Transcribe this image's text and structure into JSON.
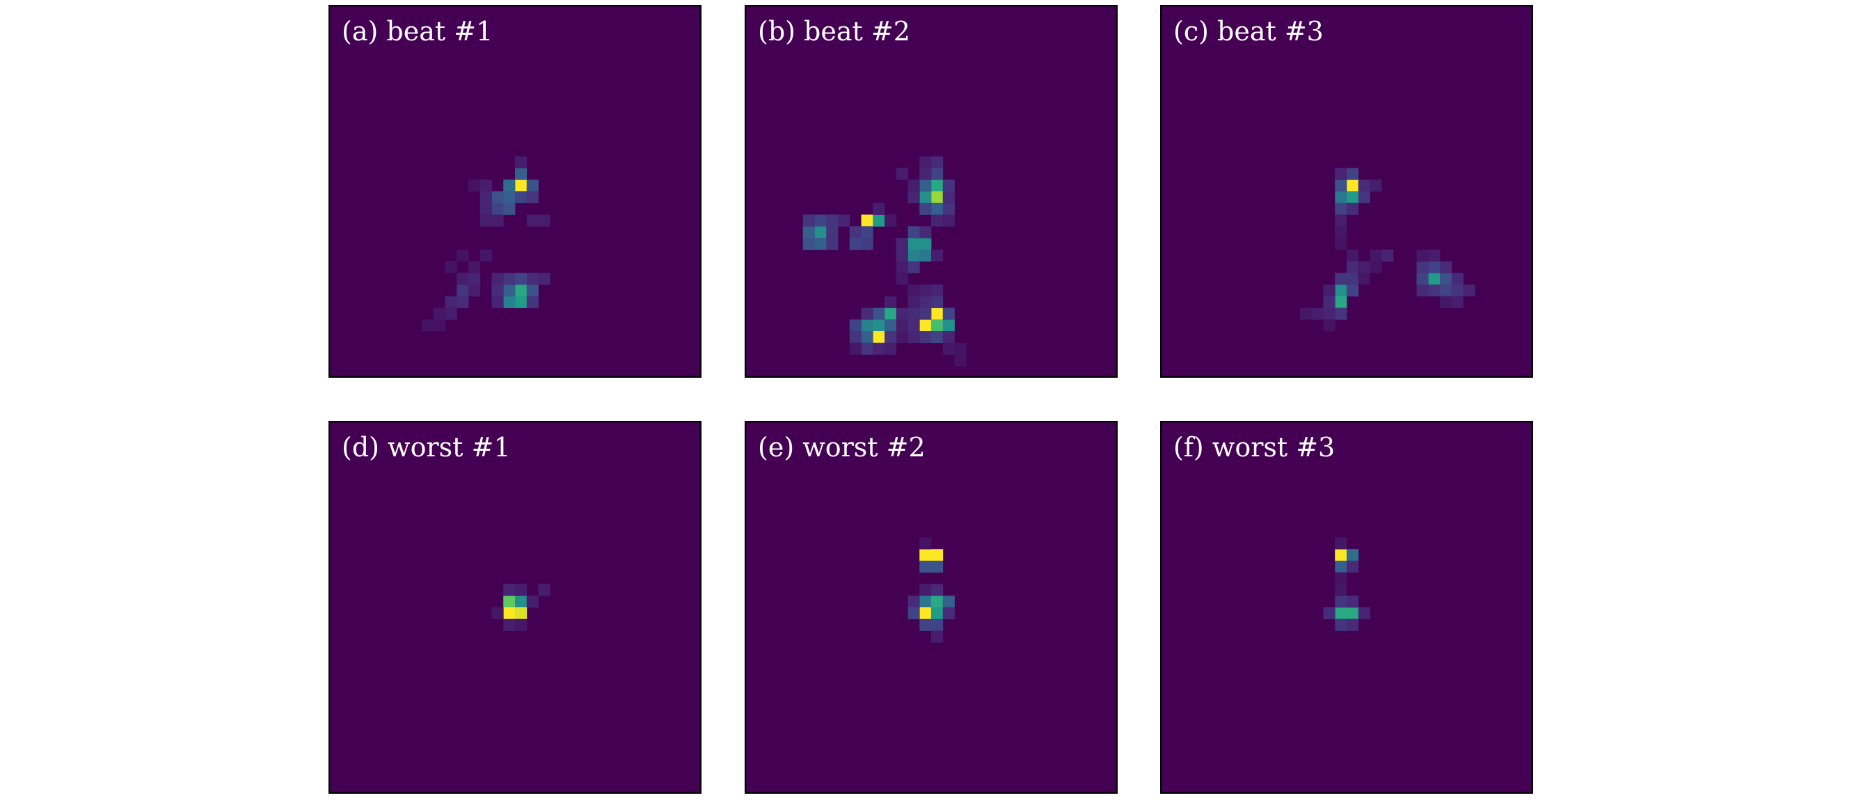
{
  "figure": {
    "colormap": "viridis",
    "colors": {
      "background": "#440154",
      "frame": "#000000",
      "title_text": "#ffffff"
    }
  },
  "chart_data": [
    {
      "type": "heatmap",
      "title": "(a) beat #1",
      "grid_size": [
        32,
        32
      ],
      "xlabel": "",
      "ylabel": "",
      "ticks": false,
      "grid": false,
      "cells": [
        [
          16,
          15,
          1.0
        ],
        [
          15,
          15,
          0.35
        ],
        [
          16,
          14,
          0.3
        ],
        [
          17,
          15,
          0.25
        ],
        [
          15,
          16,
          0.3
        ],
        [
          14,
          16,
          0.25
        ],
        [
          16,
          16,
          0.2
        ],
        [
          14,
          17,
          0.2
        ],
        [
          15,
          17,
          0.25
        ],
        [
          13,
          16,
          0.1
        ],
        [
          13,
          17,
          0.1
        ],
        [
          17,
          16,
          0.15
        ],
        [
          13,
          18,
          0.08
        ],
        [
          14,
          18,
          0.08
        ],
        [
          17,
          18,
          0.08
        ],
        [
          18,
          18,
          0.08
        ],
        [
          16,
          13,
          0.08
        ],
        [
          13,
          15,
          0.08
        ],
        [
          12,
          15,
          0.05
        ],
        [
          16,
          24,
          0.6
        ],
        [
          16,
          25,
          0.55
        ],
        [
          15,
          25,
          0.45
        ],
        [
          15,
          24,
          0.3
        ],
        [
          17,
          24,
          0.25
        ],
        [
          17,
          23,
          0.12
        ],
        [
          18,
          23,
          0.1
        ],
        [
          16,
          23,
          0.2
        ],
        [
          15,
          23,
          0.15
        ],
        [
          14,
          23,
          0.1
        ],
        [
          14,
          24,
          0.12
        ],
        [
          14,
          25,
          0.1
        ],
        [
          17,
          25,
          0.15
        ],
        [
          11,
          24,
          0.15
        ],
        [
          11,
          25,
          0.12
        ],
        [
          10,
          25,
          0.1
        ],
        [
          10,
          26,
          0.08
        ],
        [
          9,
          26,
          0.06
        ],
        [
          12,
          23,
          0.1
        ],
        [
          11,
          23,
          0.08
        ],
        [
          12,
          22,
          0.06
        ],
        [
          11,
          21,
          0.05
        ],
        [
          8,
          27,
          0.05
        ],
        [
          9,
          27,
          0.05
        ],
        [
          12,
          24,
          0.08
        ],
        [
          13,
          21,
          0.06
        ],
        [
          10,
          22,
          0.05
        ]
      ]
    },
    {
      "type": "heatmap",
      "title": "(b) beat #2",
      "grid_size": [
        32,
        32
      ],
      "xlabel": "",
      "ylabel": "",
      "ticks": false,
      "grid": false,
      "cells": [
        [
          16,
          15,
          0.6
        ],
        [
          16,
          16,
          0.85
        ],
        [
          15,
          16,
          0.5
        ],
        [
          15,
          15,
          0.3
        ],
        [
          16,
          14,
          0.2
        ],
        [
          17,
          15,
          0.15
        ],
        [
          16,
          17,
          0.3
        ],
        [
          15,
          17,
          0.2
        ],
        [
          17,
          17,
          0.15
        ],
        [
          16,
          13,
          0.12
        ],
        [
          15,
          13,
          0.08
        ],
        [
          17,
          16,
          0.12
        ],
        [
          14,
          16,
          0.1
        ],
        [
          13,
          14,
          0.08
        ],
        [
          14,
          15,
          0.08
        ],
        [
          15,
          14,
          0.1
        ],
        [
          16,
          18,
          0.1
        ],
        [
          17,
          18,
          0.08
        ],
        [
          10,
          18,
          1.0
        ],
        [
          11,
          18,
          0.55
        ],
        [
          10,
          19,
          0.2
        ],
        [
          9,
          19,
          0.15
        ],
        [
          9,
          20,
          0.2
        ],
        [
          10,
          20,
          0.18
        ],
        [
          8,
          18,
          0.1
        ],
        [
          11,
          17,
          0.08
        ],
        [
          12,
          18,
          0.06
        ],
        [
          6,
          19,
          0.5
        ],
        [
          5,
          19,
          0.3
        ],
        [
          6,
          18,
          0.2
        ],
        [
          5,
          18,
          0.15
        ],
        [
          7,
          18,
          0.15
        ],
        [
          7,
          19,
          0.15
        ],
        [
          5,
          20,
          0.25
        ],
        [
          6,
          20,
          0.3
        ],
        [
          7,
          20,
          0.15
        ],
        [
          14,
          20,
          0.5
        ],
        [
          15,
          20,
          0.5
        ],
        [
          14,
          21,
          0.45
        ],
        [
          15,
          21,
          0.4
        ],
        [
          14,
          19,
          0.2
        ],
        [
          15,
          19,
          0.12
        ],
        [
          13,
          20,
          0.1
        ],
        [
          14,
          22,
          0.15
        ],
        [
          13,
          22,
          0.08
        ],
        [
          13,
          21,
          0.1
        ],
        [
          16,
          21,
          0.08
        ],
        [
          16,
          26,
          1.0
        ],
        [
          15,
          27,
          1.0
        ],
        [
          16,
          27,
          0.7
        ],
        [
          17,
          27,
          0.5
        ],
        [
          17,
          26,
          0.2
        ],
        [
          15,
          26,
          0.15
        ],
        [
          16,
          25,
          0.15
        ],
        [
          15,
          25,
          0.12
        ],
        [
          14,
          26,
          0.12
        ],
        [
          14,
          27,
          0.12
        ],
        [
          16,
          28,
          0.2
        ],
        [
          15,
          28,
          0.15
        ],
        [
          17,
          28,
          0.1
        ],
        [
          14,
          28,
          0.1
        ],
        [
          16,
          24,
          0.1
        ],
        [
          15,
          24,
          0.08
        ],
        [
          14,
          25,
          0.08
        ],
        [
          17,
          29,
          0.06
        ],
        [
          18,
          29,
          0.05
        ],
        [
          18,
          30,
          0.05
        ],
        [
          13,
          28,
          0.06
        ],
        [
          14,
          24,
          0.06
        ],
        [
          13,
          23,
          0.06
        ],
        [
          12,
          26,
          0.6
        ],
        [
          10,
          27,
          0.45
        ],
        [
          11,
          27,
          0.5
        ],
        [
          11,
          28,
          1.0
        ],
        [
          10,
          28,
          0.3
        ],
        [
          12,
          27,
          0.3
        ],
        [
          11,
          26,
          0.25
        ],
        [
          12,
          28,
          0.15
        ],
        [
          9,
          27,
          0.2
        ],
        [
          9,
          28,
          0.15
        ],
        [
          10,
          29,
          0.15
        ],
        [
          11,
          29,
          0.1
        ],
        [
          12,
          29,
          0.08
        ],
        [
          10,
          26,
          0.12
        ],
        [
          9,
          29,
          0.06
        ],
        [
          12,
          25,
          0.08
        ],
        [
          13,
          26,
          0.1
        ],
        [
          13,
          27,
          0.08
        ]
      ]
    },
    {
      "type": "heatmap",
      "title": "(c) beat #3",
      "grid_size": [
        32,
        32
      ],
      "xlabel": "",
      "ylabel": "",
      "ticks": false,
      "grid": false,
      "cells": [
        [
          16,
          15,
          1.0
        ],
        [
          16,
          16,
          0.55
        ],
        [
          15,
          16,
          0.4
        ],
        [
          15,
          15,
          0.25
        ],
        [
          16,
          14,
          0.2
        ],
        [
          17,
          15,
          0.12
        ],
        [
          15,
          17,
          0.2
        ],
        [
          16,
          17,
          0.12
        ],
        [
          17,
          16,
          0.15
        ],
        [
          15,
          14,
          0.1
        ],
        [
          18,
          15,
          0.08
        ],
        [
          15,
          18,
          0.08
        ],
        [
          15,
          19,
          0.06
        ],
        [
          15,
          20,
          0.05
        ],
        [
          15,
          24,
          0.5
        ],
        [
          15,
          25,
          0.6
        ],
        [
          16,
          24,
          0.2
        ],
        [
          16,
          23,
          0.15
        ],
        [
          16,
          22,
          0.12
        ],
        [
          15,
          23,
          0.15
        ],
        [
          14,
          25,
          0.12
        ],
        [
          15,
          26,
          0.15
        ],
        [
          14,
          26,
          0.1
        ],
        [
          13,
          26,
          0.08
        ],
        [
          12,
          26,
          0.06
        ],
        [
          16,
          21,
          0.06
        ],
        [
          17,
          22,
          0.08
        ],
        [
          17,
          23,
          0.06
        ],
        [
          14,
          24,
          0.08
        ],
        [
          18,
          22,
          0.05
        ],
        [
          19,
          21,
          0.1
        ],
        [
          18,
          21,
          0.06
        ],
        [
          14,
          27,
          0.05
        ],
        [
          23,
          23,
          0.55
        ],
        [
          22,
          23,
          0.2
        ],
        [
          24,
          23,
          0.25
        ],
        [
          23,
          22,
          0.2
        ],
        [
          22,
          22,
          0.15
        ],
        [
          24,
          22,
          0.12
        ],
        [
          23,
          24,
          0.15
        ],
        [
          24,
          24,
          0.2
        ],
        [
          25,
          24,
          0.15
        ],
        [
          25,
          23,
          0.12
        ],
        [
          22,
          24,
          0.12
        ],
        [
          26,
          24,
          0.1
        ],
        [
          25,
          25,
          0.08
        ],
        [
          24,
          25,
          0.06
        ],
        [
          23,
          21,
          0.08
        ],
        [
          22,
          21,
          0.06
        ]
      ]
    },
    {
      "type": "heatmap",
      "title": "(d) worst #1",
      "grid_size": [
        32,
        32
      ],
      "xlabel": "",
      "ylabel": "",
      "ticks": false,
      "grid": false,
      "cells": [
        [
          15,
          15,
          0.75
        ],
        [
          16,
          15,
          0.5
        ],
        [
          15,
          16,
          1.0
        ],
        [
          16,
          16,
          0.95
        ],
        [
          15,
          14,
          0.1
        ],
        [
          16,
          14,
          0.08
        ],
        [
          17,
          15,
          0.08
        ],
        [
          18,
          14,
          0.08
        ],
        [
          15,
          17,
          0.08
        ],
        [
          16,
          17,
          0.06
        ],
        [
          14,
          16,
          0.06
        ]
      ]
    },
    {
      "type": "heatmap",
      "title": "(e) worst #2",
      "grid_size": [
        32,
        32
      ],
      "xlabel": "",
      "ylabel": "",
      "ticks": false,
      "grid": false,
      "cells": [
        [
          15,
          11,
          1.0
        ],
        [
          16,
          11,
          1.0
        ],
        [
          15,
          12,
          0.25
        ],
        [
          16,
          12,
          0.25
        ],
        [
          15,
          10,
          0.05
        ],
        [
          15,
          15,
          0.4
        ],
        [
          16,
          15,
          0.6
        ],
        [
          15,
          16,
          1.0
        ],
        [
          16,
          16,
          0.55
        ],
        [
          14,
          15,
          0.12
        ],
        [
          14,
          16,
          0.2
        ],
        [
          17,
          15,
          0.3
        ],
        [
          17,
          16,
          0.12
        ],
        [
          15,
          17,
          0.2
        ],
        [
          16,
          17,
          0.2
        ],
        [
          16,
          14,
          0.12
        ],
        [
          15,
          14,
          0.08
        ],
        [
          16,
          18,
          0.08
        ]
      ]
    },
    {
      "type": "heatmap",
      "title": "(f) worst #3",
      "grid_size": [
        32,
        32
      ],
      "xlabel": "",
      "ylabel": "",
      "ticks": false,
      "grid": false,
      "cells": [
        [
          15,
          11,
          1.0
        ],
        [
          16,
          11,
          0.35
        ],
        [
          15,
          12,
          0.3
        ],
        [
          16,
          12,
          0.12
        ],
        [
          15,
          10,
          0.06
        ],
        [
          15,
          16,
          0.6
        ],
        [
          16,
          16,
          0.6
        ],
        [
          15,
          15,
          0.15
        ],
        [
          16,
          15,
          0.12
        ],
        [
          14,
          16,
          0.12
        ],
        [
          17,
          16,
          0.1
        ],
        [
          15,
          17,
          0.15
        ],
        [
          16,
          17,
          0.12
        ],
        [
          15,
          14,
          0.06
        ],
        [
          15,
          13,
          0.05
        ]
      ]
    }
  ]
}
